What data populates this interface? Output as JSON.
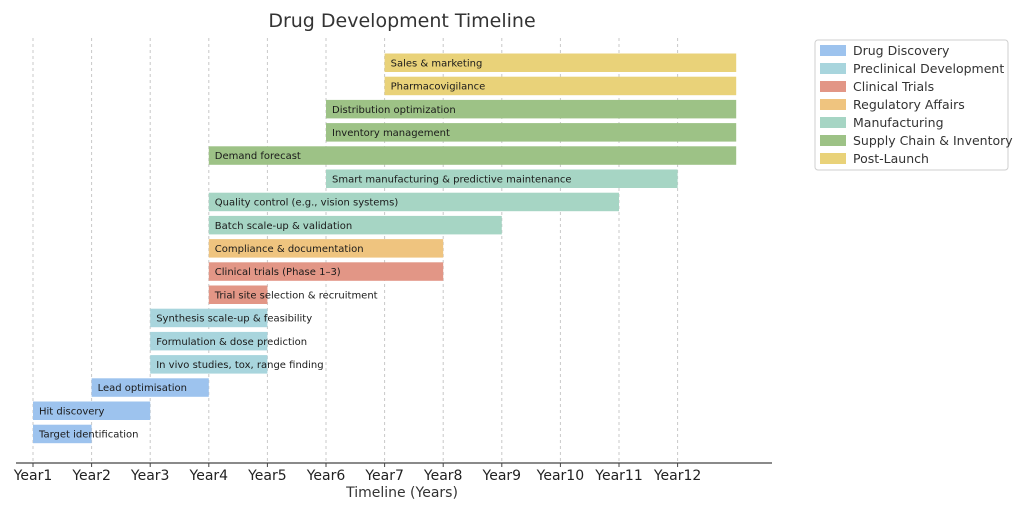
{
  "chart_data": {
    "type": "bar",
    "orientation": "horizontal",
    "title": "Drug Development Timeline",
    "xlabel": "Timeline (Years)",
    "ylabel": "",
    "xlim": [
      1,
      13
    ],
    "grid": true,
    "legend_position": "outside-top-right",
    "x_ticks": [
      "Year1",
      "Year2",
      "Year3",
      "Year4",
      "Year5",
      "Year6",
      "Year7",
      "Year8",
      "Year9",
      "Year10",
      "Year11",
      "Year12"
    ],
    "categories": [
      {
        "name": "Drug Discovery",
        "color": "#9dc3ee"
      },
      {
        "name": "Preclinical Development",
        "color": "#a8d5dd"
      },
      {
        "name": "Clinical Trials",
        "color": "#e29686"
      },
      {
        "name": "Regulatory Affairs",
        "color": "#efc47f"
      },
      {
        "name": "Manufacturing",
        "color": "#a6d5c4"
      },
      {
        "name": "Supply Chain & Inventory",
        "color": "#9dc286"
      },
      {
        "name": "Post-Launch",
        "color": "#e9d279"
      }
    ],
    "tasks": [
      {
        "label": "Target identification",
        "category": 0,
        "start": 1,
        "end": 2
      },
      {
        "label": "Hit discovery",
        "category": 0,
        "start": 1,
        "end": 3
      },
      {
        "label": "Lead optimisation",
        "category": 0,
        "start": 2,
        "end": 4
      },
      {
        "label": "In vivo studies, tox, range finding",
        "category": 1,
        "start": 3,
        "end": 5
      },
      {
        "label": "Formulation & dose prediction",
        "category": 1,
        "start": 3,
        "end": 5
      },
      {
        "label": "Synthesis scale-up & feasibility",
        "category": 1,
        "start": 3,
        "end": 5
      },
      {
        "label": "Trial site selection & recruitment",
        "category": 2,
        "start": 4,
        "end": 5
      },
      {
        "label": "Clinical trials (Phase 1–3)",
        "category": 2,
        "start": 4,
        "end": 8
      },
      {
        "label": "Compliance & documentation",
        "category": 3,
        "start": 4,
        "end": 8
      },
      {
        "label": "Batch scale-up & validation",
        "category": 4,
        "start": 4,
        "end": 9
      },
      {
        "label": "Quality control (e.g., vision systems)",
        "category": 4,
        "start": 4,
        "end": 11
      },
      {
        "label": "Smart manufacturing & predictive maintenance",
        "category": 4,
        "start": 6,
        "end": 12
      },
      {
        "label": "Demand forecast",
        "category": 5,
        "start": 4,
        "end": 13
      },
      {
        "label": "Inventory management",
        "category": 5,
        "start": 6,
        "end": 13
      },
      {
        "label": "Distribution optimization",
        "category": 5,
        "start": 6,
        "end": 13
      },
      {
        "label": "Pharmacovigilance",
        "category": 6,
        "start": 7,
        "end": 13
      },
      {
        "label": "Sales & marketing",
        "category": 6,
        "start": 7,
        "end": 13
      }
    ]
  }
}
